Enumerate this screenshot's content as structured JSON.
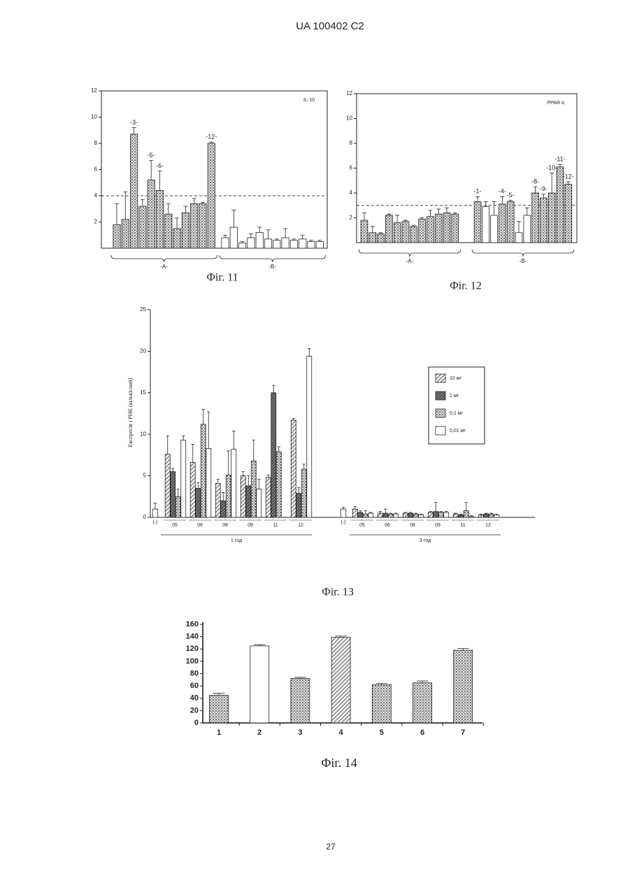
{
  "header": "UA   100402   C2",
  "page_number": "27",
  "chart_data": [
    {
      "type": "bar",
      "caption": "Фіг. 11",
      "label": "IL-10",
      "ylim": [
        0,
        12
      ],
      "yticks": [
        2,
        4,
        6,
        8,
        10,
        12
      ],
      "reference_line": 4,
      "groups": [
        {
          "label": "-A-",
          "fill": "dots",
          "categories": [
            null,
            null,
            "-3-",
            null,
            "-5-",
            "-6-",
            null,
            null,
            null,
            null,
            null,
            "-12-"
          ],
          "values": [
            1.8,
            2.2,
            8.7,
            3.2,
            5.2,
            4.4,
            2.6,
            1.5,
            2.7,
            3.4,
            3.4,
            8.0
          ],
          "errors": [
            1.6,
            2.1,
            0.5,
            0.5,
            1.5,
            1.5,
            0.8,
            0.8,
            0.5,
            0.4,
            0.1,
            0.1
          ]
        },
        {
          "label": "-B-",
          "fill": "white",
          "values": [
            0.8,
            1.6,
            0.4,
            0.8,
            1.2,
            0.7,
            0.6,
            0.8,
            0.6,
            0.7,
            0.5,
            0.5
          ],
          "errors": [
            0.2,
            1.3,
            0.1,
            0.3,
            0.4,
            0.7,
            0.1,
            0.7,
            0.1,
            0.3,
            0.1,
            0.1
          ]
        }
      ]
    },
    {
      "type": "bar",
      "caption": "Фіг. 12",
      "label": "PPAR α",
      "ylim": [
        0,
        12
      ],
      "yticks": [
        2,
        4,
        6,
        8,
        10,
        12
      ],
      "reference_line": 3,
      "groups": [
        {
          "label": "-A-",
          "fill": "dots",
          "values": [
            1.8,
            0.8,
            0.7,
            2.2,
            1.6,
            1.7,
            1.3,
            1.9,
            2.1,
            2.3,
            2.4,
            2.3
          ],
          "errors": [
            0.6,
            0.5,
            0.1,
            0.1,
            0.6,
            0.1,
            0.1,
            0.1,
            0.5,
            0.4,
            0.4,
            0.1
          ]
        },
        {
          "label": "-B-",
          "fills": [
            "dots",
            "white",
            "white",
            "dots",
            "dots",
            "white",
            "white",
            "dots",
            "dots",
            "dots",
            "dots",
            "dots"
          ],
          "categories": [
            "-1-",
            null,
            null,
            "-4-",
            "-5-",
            null,
            null,
            "-8-",
            "-9-",
            "-10-",
            "-11-",
            "-12-"
          ],
          "values": [
            3.3,
            2.9,
            2.2,
            3.1,
            3.3,
            0.8,
            2.2,
            4.0,
            3.6,
            4.0,
            6.1,
            4.7
          ],
          "errors": [
            0.4,
            0.4,
            1.1,
            0.6,
            0.1,
            0.9,
            0.6,
            0.5,
            0.3,
            1.6,
            0.2,
            0.2
          ]
        }
      ]
    },
    {
      "type": "grouped-bar",
      "caption": "Фіг. 13",
      "ylabel": "Експресія і РНК (кількісний)",
      "ylim": [
        0,
        25
      ],
      "yticks": [
        0,
        5,
        10,
        15,
        20,
        25
      ],
      "series": [
        {
          "name": "10 мг",
          "fill": "hatch"
        },
        {
          "name": "1 мг",
          "fill": "dhatch"
        },
        {
          "name": "0,1 мг",
          "fill": "dots"
        },
        {
          "name": "0,01 мг",
          "fill": "white"
        }
      ],
      "panels": [
        {
          "label": "1 год",
          "control_label": "(-)",
          "control_value": 1.0,
          "control_error": 0.7,
          "categories": [
            "05",
            "06",
            "08",
            "09",
            "11",
            "12"
          ],
          "values": [
            [
              7.6,
              6.6,
              4.1,
              5.0,
              4.8,
              11.7
            ],
            [
              5.5,
              3.5,
              2.0,
              3.8,
              15.0,
              2.9
            ],
            [
              2.5,
              11.2,
              5.1,
              6.8,
              7.9,
              5.8
            ],
            [
              9.3,
              8.3,
              8.2,
              3.4,
              null,
              19.4
            ]
          ],
          "errors": [
            [
              2.2,
              2.2,
              0.5,
              0.5,
              0.3,
              0.2
            ],
            [
              0.4,
              0.7,
              1.0,
              1.2,
              0.9,
              0.7
            ],
            [
              0.9,
              1.8,
              2.9,
              2.5,
              0.6,
              0.6
            ],
            [
              0.5,
              4.4,
              2.2,
              1.2,
              null,
              0.9
            ]
          ]
        },
        {
          "label": "3 год",
          "control_label": "(-)",
          "control_value": 1.0,
          "control_error": 0.2,
          "categories": [
            "05",
            "06",
            "08",
            "09",
            "11",
            "12"
          ],
          "values": [
            [
              1.0,
              0.5,
              0.5,
              0.6,
              0.4,
              0.3
            ],
            [
              0.6,
              0.5,
              0.5,
              0.7,
              0.3,
              0.4
            ],
            [
              0.4,
              0.4,
              0.4,
              0.6,
              0.8,
              0.4
            ],
            [
              0.5,
              0.4,
              0.3,
              0.6,
              0.1,
              0.3
            ]
          ],
          "errors": [
            [
              0.3,
              0.2,
              0.1,
              0.1,
              0.1,
              0.1
            ],
            [
              0.2,
              0.5,
              0.1,
              1.1,
              0.1,
              0.1
            ],
            [
              0.4,
              0.1,
              0.1,
              0.1,
              1.0,
              0.1
            ],
            [
              0.1,
              0.1,
              0.1,
              0.1,
              0.1,
              0.1
            ]
          ]
        }
      ]
    },
    {
      "type": "bar",
      "caption": "Фіг. 14",
      "ylim": [
        0,
        160
      ],
      "yticks": [
        0,
        20,
        40,
        60,
        80,
        100,
        120,
        140,
        160
      ],
      "categories": [
        "1",
        "2",
        "3",
        "4",
        "5",
        "6",
        "7"
      ],
      "values": [
        45,
        125,
        72,
        139,
        62,
        65,
        118
      ],
      "errors": [
        3,
        2,
        2,
        2,
        2,
        3,
        3
      ],
      "fills": [
        "dots",
        "white",
        "dots",
        "hatch",
        "dots",
        "dots",
        "dots"
      ]
    }
  ]
}
